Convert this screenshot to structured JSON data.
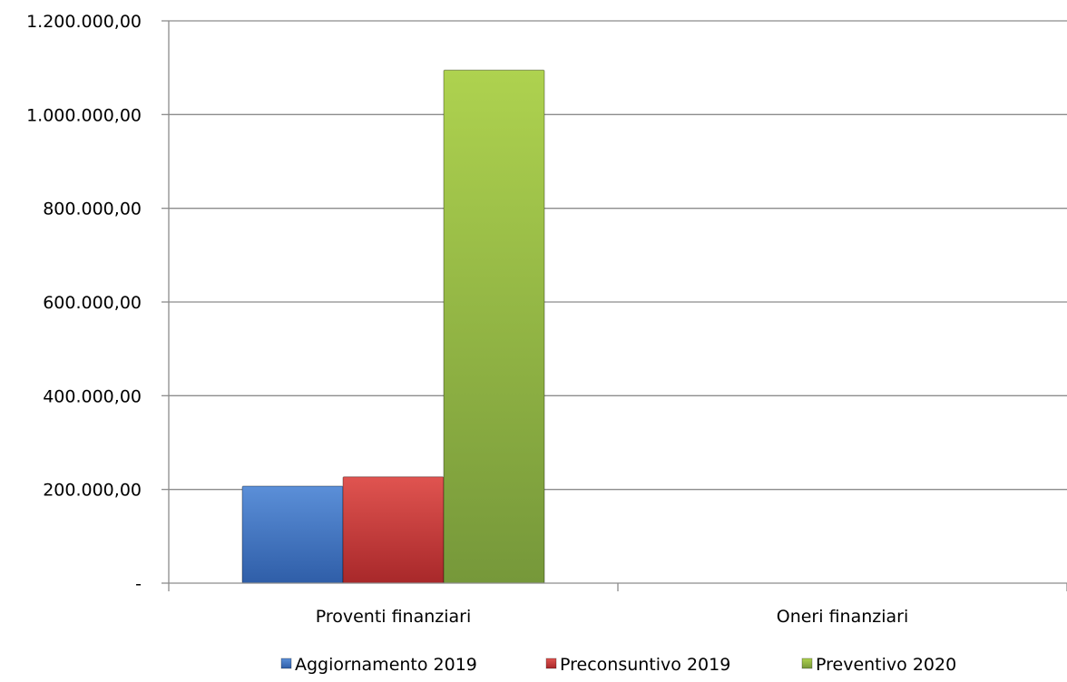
{
  "chart_data": {
    "type": "bar",
    "categories": [
      "Proventi finanziari",
      "Oneri finanziari"
    ],
    "series": [
      {
        "name": "Aggiornamento 2019",
        "values": [
          207000,
          0
        ],
        "color": "#4472C4"
      },
      {
        "name": "Preconsuntivo 2019",
        "values": [
          227000,
          0
        ],
        "color": "#C0392B"
      },
      {
        "name": "Preventivo 2020",
        "values": [
          1095000,
          0
        ],
        "color": "#8DB33A"
      }
    ],
    "ylim": [
      0,
      1200000
    ],
    "yticks": [
      {
        "value": 0,
        "label": "-"
      },
      {
        "value": 200000,
        "label": "200.000,00"
      },
      {
        "value": 400000,
        "label": "400.000,00"
      },
      {
        "value": 600000,
        "label": "600.000,00"
      },
      {
        "value": 800000,
        "label": "800.000,00"
      },
      {
        "value": 1000000,
        "label": "1.000.000,00"
      },
      {
        "value": 1200000,
        "label": "1.200.000,00"
      }
    ],
    "grid": true,
    "legend_position": "bottom"
  }
}
